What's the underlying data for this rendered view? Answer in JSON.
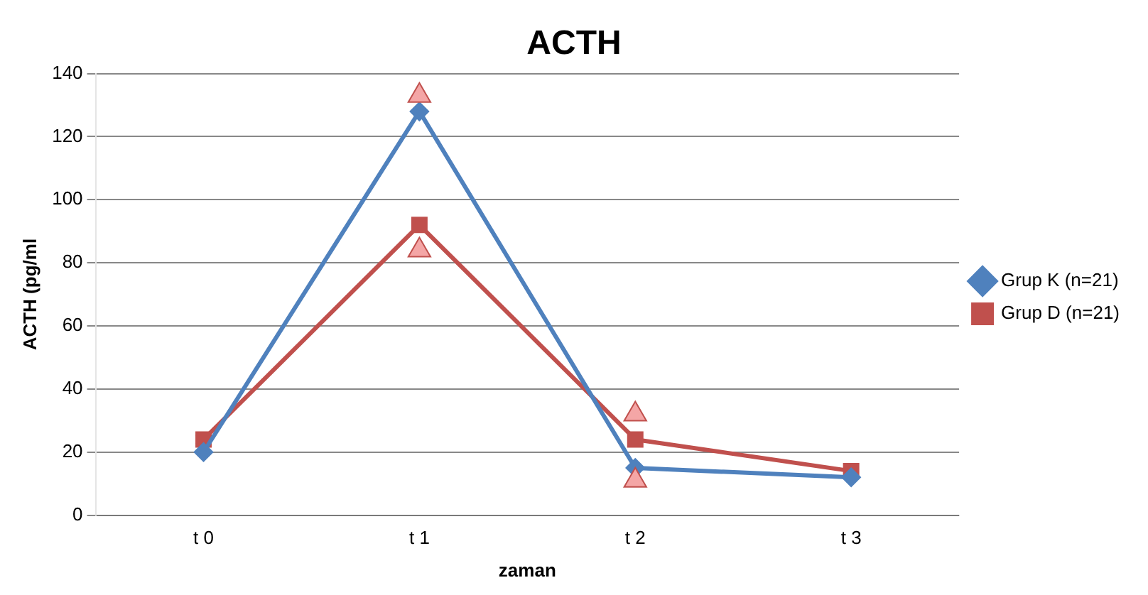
{
  "chart_data": {
    "type": "line",
    "title": "ACTH",
    "xlabel": "zaman",
    "ylabel": "ACTH (pg/ml",
    "categories": [
      "t 0",
      "t 1",
      "t 2",
      "t 3"
    ],
    "series": [
      {
        "name": "Grup K (n=21)",
        "color": "#4f81bd",
        "values": [
          20,
          128,
          15,
          12
        ],
        "marker": "diamond"
      },
      {
        "name": "Grup D (n=21)",
        "color": "#c0504d",
        "values": [
          24,
          92,
          24,
          14
        ],
        "marker": "square"
      },
      {
        "type": "scatter",
        "color": "#f4a6a6",
        "x": [
          "t 1",
          "t 1",
          "t 2",
          "t 2"
        ],
        "values": [
          133,
          84,
          32,
          11
        ],
        "marker": "triangle"
      }
    ],
    "ylim": [
      0,
      140
    ],
    "yticks": [
      0,
      20,
      40,
      60,
      80,
      100,
      120,
      140
    ],
    "grid": "y",
    "legend": "right",
    "line_style": "solid"
  }
}
